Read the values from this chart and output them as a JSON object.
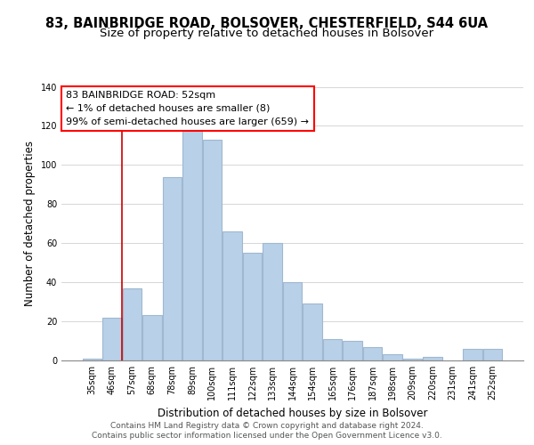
{
  "title": "83, BAINBRIDGE ROAD, BOLSOVER, CHESTERFIELD, S44 6UA",
  "subtitle": "Size of property relative to detached houses in Bolsover",
  "xlabel": "Distribution of detached houses by size in Bolsover",
  "ylabel": "Number of detached properties",
  "bar_labels": [
    "35sqm",
    "46sqm",
    "57sqm",
    "68sqm",
    "78sqm",
    "89sqm",
    "100sqm",
    "111sqm",
    "122sqm",
    "133sqm",
    "144sqm",
    "154sqm",
    "165sqm",
    "176sqm",
    "187sqm",
    "198sqm",
    "209sqm",
    "220sqm",
    "231sqm",
    "241sqm",
    "252sqm"
  ],
  "bar_heights": [
    1,
    22,
    37,
    23,
    94,
    118,
    113,
    66,
    55,
    60,
    40,
    29,
    11,
    10,
    7,
    3,
    1,
    2,
    0,
    6,
    6
  ],
  "bar_color": "#b8d0e8",
  "annotation_box_text_line1": "83 BAINBRIDGE ROAD: 52sqm",
  "annotation_box_text_line2": "← 1% of detached houses are smaller (8)",
  "annotation_box_text_line3": "99% of semi-detached houses are larger (659) →",
  "vline_x": 1.5,
  "ylim": [
    0,
    140
  ],
  "yticks": [
    0,
    20,
    40,
    60,
    80,
    100,
    120,
    140
  ],
  "footer_line1": "Contains HM Land Registry data © Crown copyright and database right 2024.",
  "footer_line2": "Contains public sector information licensed under the Open Government Licence v3.0.",
  "grid_color": "#d0d0d0",
  "title_fontsize": 10.5,
  "subtitle_fontsize": 9.5,
  "axis_label_fontsize": 8.5,
  "tick_fontsize": 7,
  "footer_fontsize": 6.5,
  "ann_fontsize": 8
}
